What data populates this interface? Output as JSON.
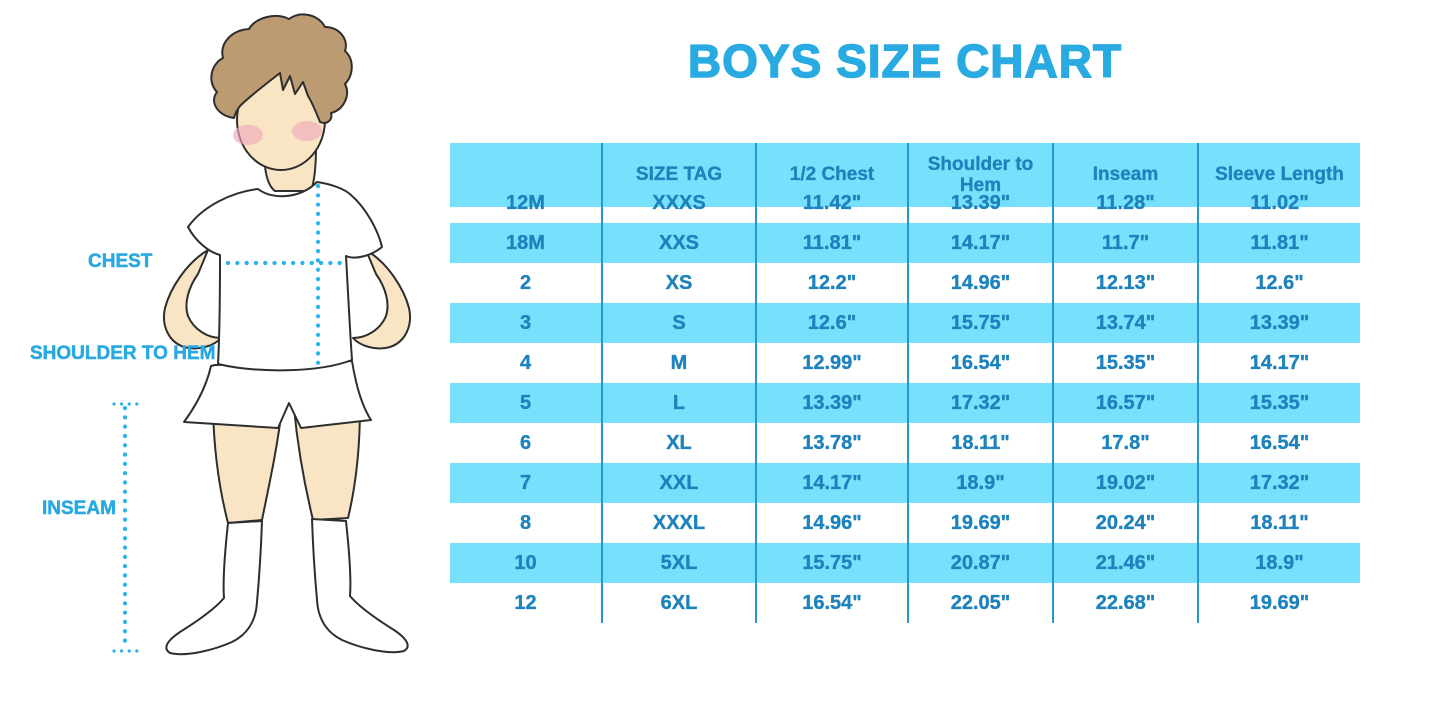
{
  "title": "BOYS SIZE CHART",
  "figure": {
    "description": "cartoon boy in white t-shirt, shorts and socks with dotted measurement guides",
    "labels": {
      "chest": "CHEST",
      "shoulder_to_hem": "SHOULDER TO HEM",
      "inseam": "INSEAM"
    }
  },
  "chart_data": {
    "type": "table",
    "title": "BOYS SIZE CHART",
    "columns": [
      "",
      "SIZE TAG",
      "1/2 Chest",
      "Shoulder to Hem",
      "Inseam",
      "Sleeve Length"
    ],
    "rows": [
      [
        "12M",
        "XXXS",
        "11.42\"",
        "13.39\"",
        "11.28\"",
        "11.02\""
      ],
      [
        "18M",
        "XXS",
        "11.81\"",
        "14.17\"",
        "11.7\"",
        "11.81\""
      ],
      [
        "2",
        "XS",
        "12.2\"",
        "14.96\"",
        "12.13\"",
        "12.6\""
      ],
      [
        "3",
        "S",
        "12.6\"",
        "15.75\"",
        "13.74\"",
        "13.39\""
      ],
      [
        "4",
        "M",
        "12.99\"",
        "16.54\"",
        "15.35\"",
        "14.17\""
      ],
      [
        "5",
        "L",
        "13.39\"",
        "17.32\"",
        "16.57\"",
        "15.35\""
      ],
      [
        "6",
        "XL",
        "13.78\"",
        "18.11\"",
        "17.8\"",
        "16.54\""
      ],
      [
        "7",
        "XXL",
        "14.17\"",
        "18.9\"",
        "19.02\"",
        "17.32\""
      ],
      [
        "8",
        "XXXL",
        "14.96\"",
        "19.69\"",
        "20.24\"",
        "18.11\""
      ],
      [
        "10",
        "5XL",
        "15.75\"",
        "20.87\"",
        "21.46\"",
        "18.9\""
      ],
      [
        "12",
        "6XL",
        "16.54\"",
        "22.05\"",
        "22.68\"",
        "19.69\""
      ]
    ],
    "layout": {
      "header_background": "#77E1FD",
      "striped_rows": [
        "18M",
        "3",
        "5",
        "7",
        "10"
      ],
      "stripe_color": "#77E1FD",
      "column_divider_color": "#2697CC",
      "grid": "vertical dividers only, alternating cyan row bands"
    }
  },
  "colors": {
    "title_blue": "#29ABE2",
    "table_text_blue": "#1E82BC",
    "row_stripe_cyan": "#77E1FD",
    "column_divider_blue": "#2697CC",
    "measurement_dotted_blue": "#2BB3EC",
    "skin": "#F9E4C4",
    "hair_brown": "#BC9A72",
    "blush_pink": "#F0A9BC",
    "outline": "#2E2E2E"
  }
}
